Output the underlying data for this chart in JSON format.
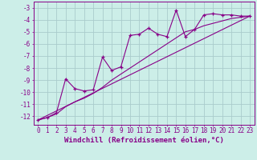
{
  "background_color": "#cceee8",
  "grid_color": "#aacccc",
  "line_color": "#880088",
  "xlabel": "Windchill (Refroidissement éolien,°C)",
  "xlabel_fontsize": 6.5,
  "tick_fontsize": 5.5,
  "xlim": [
    -0.5,
    23.5
  ],
  "ylim": [
    -12.7,
    -2.5
  ],
  "yticks": [
    -12,
    -11,
    -10,
    -9,
    -8,
    -7,
    -6,
    -5,
    -4,
    -3
  ],
  "xticks": [
    0,
    1,
    2,
    3,
    4,
    5,
    6,
    7,
    8,
    9,
    10,
    11,
    12,
    13,
    14,
    15,
    16,
    17,
    18,
    19,
    20,
    21,
    22,
    23
  ],
  "series1_x": [
    0,
    1,
    2,
    3,
    4,
    5,
    6,
    7,
    8,
    9,
    10,
    11,
    12,
    13,
    14,
    15,
    16,
    17,
    18,
    19,
    20,
    21,
    22,
    23
  ],
  "series1_y": [
    -12.3,
    -12.1,
    -11.7,
    -8.9,
    -9.7,
    -9.9,
    -9.8,
    -7.1,
    -8.2,
    -7.9,
    -5.3,
    -5.2,
    -4.7,
    -5.2,
    -5.4,
    -3.2,
    -5.4,
    -4.8,
    -3.6,
    -3.5,
    -3.6,
    -3.6,
    -3.7,
    -3.7
  ],
  "series2_x": [
    0,
    1,
    2,
    3,
    4,
    5,
    6,
    7,
    8,
    9,
    10,
    11,
    12,
    13,
    14,
    15,
    16,
    17,
    18,
    19,
    20,
    21,
    22,
    23
  ],
  "series2_y": [
    -12.3,
    -12.1,
    -11.8,
    -11.2,
    -10.8,
    -10.5,
    -10.1,
    -9.6,
    -9.0,
    -8.5,
    -8.0,
    -7.5,
    -7.0,
    -6.5,
    -6.0,
    -5.5,
    -5.0,
    -4.8,
    -4.5,
    -4.3,
    -4.1,
    -3.9,
    -3.8,
    -3.7
  ],
  "series3_x": [
    0,
    23
  ],
  "series3_y": [
    -12.3,
    -3.7
  ]
}
